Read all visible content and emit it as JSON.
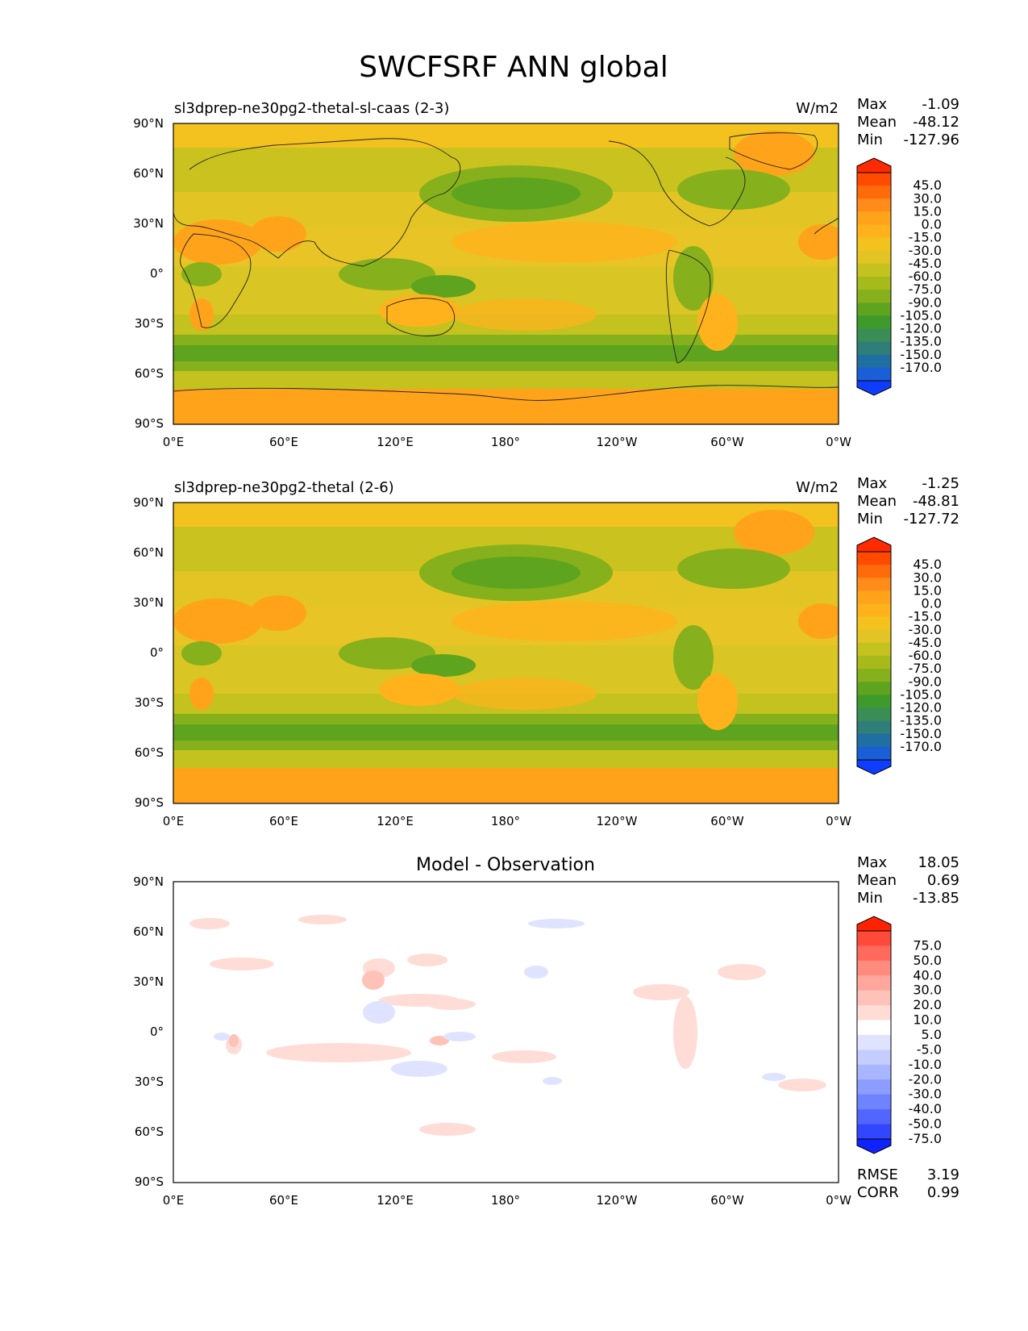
{
  "title": "SWCFSRF ANN global",
  "lon_ticks": [
    "0°E",
    "60°E",
    "120°E",
    "180°",
    "120°W",
    "60°W",
    "0°W"
  ],
  "lat_ticks": [
    "90°N",
    "60°N",
    "30°N",
    "0°",
    "30°S",
    "60°S",
    "90°S"
  ],
  "stat_labels": {
    "max": "Max",
    "mean": "Mean",
    "min": "Min",
    "rmse": "RMSE",
    "corr": "CORR"
  },
  "panels": [
    {
      "title": "sl3dprep-ne30pg2-thetal-sl-caas (2-3)",
      "units": "W/m2",
      "stats": {
        "max": "-1.09",
        "mean": "-48.12",
        "min": "-127.96"
      },
      "colorbar": {
        "labels": [
          "45.0",
          "30.0",
          "15.0",
          "0.0",
          "-15.0",
          "-30.0",
          "-45.0",
          "-60.0",
          "-75.0",
          "-90.0",
          "-105.0",
          "-120.0",
          "-135.0",
          "-150.0",
          "-170.0"
        ],
        "colors": [
          "#ff2a00",
          "#ff4a00",
          "#ff6a0a",
          "#ff8c1a",
          "#ffa31a",
          "#ffb21c",
          "#f3c21e",
          "#e2c524",
          "#c3c21e",
          "#a7ba1c",
          "#86b01c",
          "#5fa41e",
          "#3f9a2c",
          "#3a8d55",
          "#2f7e79",
          "#1f6fa2",
          "#1a5fd6",
          "#0f3dff"
        ]
      }
    },
    {
      "title": "sl3dprep-ne30pg2-thetal (2-6)",
      "units": "W/m2",
      "stats": {
        "max": "-1.25",
        "mean": "-48.81",
        "min": "-127.72"
      },
      "colorbar": {
        "labels": [
          "45.0",
          "30.0",
          "15.0",
          "0.0",
          "-15.0",
          "-30.0",
          "-45.0",
          "-60.0",
          "-75.0",
          "-90.0",
          "-105.0",
          "-120.0",
          "-135.0",
          "-150.0",
          "-170.0"
        ],
        "colors": [
          "#ff2a00",
          "#ff4a00",
          "#ff6a0a",
          "#ff8c1a",
          "#ffa31a",
          "#ffb21c",
          "#f3c21e",
          "#e2c524",
          "#c3c21e",
          "#a7ba1c",
          "#86b01c",
          "#5fa41e",
          "#3f9a2c",
          "#3a8d55",
          "#2f7e79",
          "#1f6fa2",
          "#1a5fd6",
          "#0f3dff"
        ]
      }
    },
    {
      "title": "Model - Observation",
      "units": "",
      "stats": {
        "max": "18.05",
        "mean": "0.69",
        "min": "-13.85",
        "rmse": "3.19",
        "corr": "0.99"
      },
      "colorbar": {
        "labels": [
          "75.0",
          "50.0",
          "40.0",
          "30.0",
          "20.0",
          "10.0",
          "5.0",
          "-5.0",
          "-10.0",
          "-20.0",
          "-30.0",
          "-40.0",
          "-50.0",
          "-75.0"
        ],
        "colors": [
          "#ff2200",
          "#ff4a3a",
          "#ff6a5c",
          "#ff8a7e",
          "#ffa79c",
          "#ffc2b8",
          "#ffdcd6",
          "#ffffff",
          "#dfe3ff",
          "#c5cdff",
          "#a8b5ff",
          "#8c9cff",
          "#6f82ff",
          "#5266ff",
          "#3346ff",
          "#0f22ff"
        ]
      }
    }
  ]
}
